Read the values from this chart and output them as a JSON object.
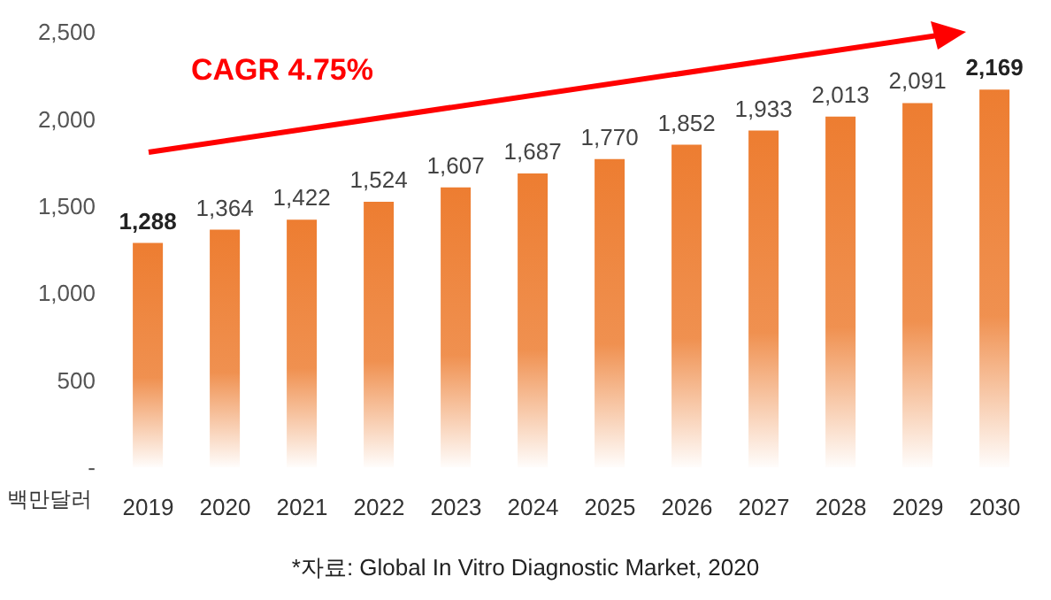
{
  "chart_data": {
    "type": "bar",
    "ylabel": "백만달러",
    "categories": [
      "2019",
      "2020",
      "2021",
      "2022",
      "2023",
      "2024",
      "2025",
      "2026",
      "2027",
      "2028",
      "2029",
      "2030"
    ],
    "values": [
      1288,
      1364,
      1422,
      1524,
      1607,
      1687,
      1770,
      1852,
      1933,
      2013,
      2091,
      2169
    ],
    "value_labels": [
      "1,288",
      "1,364",
      "1,422",
      "1,524",
      "1,607",
      "1,687",
      "1,770",
      "1,852",
      "1,933",
      "2,013",
      "2,091",
      "2,169"
    ],
    "color": "#ed7d31",
    "ylim": [
      0,
      2500
    ],
    "yticks": [
      {
        "value": 0,
        "label": "-"
      },
      {
        "value": 500,
        "label": "500"
      },
      {
        "value": 1000,
        "label": "1,000"
      },
      {
        "value": 1500,
        "label": "1,500"
      },
      {
        "value": 2000,
        "label": "2,000"
      },
      {
        "value": 2500,
        "label": "2,500"
      }
    ],
    "grid": false,
    "legend": false,
    "annotations": [
      "CAGR 4.75%",
      "*자료: Global In Vitro Diagnostic Market, 2020"
    ]
  }
}
